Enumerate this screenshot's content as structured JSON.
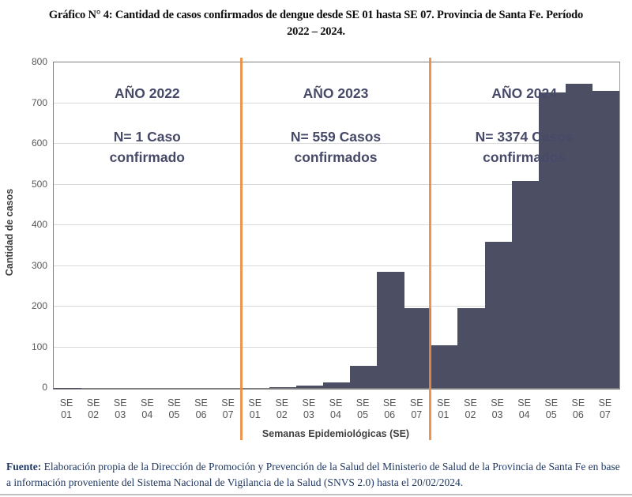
{
  "title": {
    "line1": "Gráfico N° 4: Cantidad de casos confirmados de dengue desde SE 01 hasta SE 07. Provincia de Santa Fe. Período",
    "line2": "2022 – 2024."
  },
  "chart_data": {
    "type": "bar",
    "title": "Gráfico N° 4: Cantidad de casos confirmados de dengue desde SE 01 hasta SE 07. Provincia de Santa Fe. Período 2022 – 2024.",
    "xlabel": "Semanas Epidemiológicas (SE)",
    "ylabel": "Cantidad de casos",
    "ylim": [
      0,
      800
    ],
    "ytick_step": 100,
    "grid": true,
    "legend": "none",
    "bar_color": "#4c4e64",
    "divider_color": "#eb8b3f",
    "categories": [
      "SE 01",
      "SE 02",
      "SE 03",
      "SE 04",
      "SE 05",
      "SE 06",
      "SE 07",
      "SE 01",
      "SE 02",
      "SE 03",
      "SE 04",
      "SE 05",
      "SE 06",
      "SE 07",
      "SE 01",
      "SE 02",
      "SE 03",
      "SE 04",
      "SE 05",
      "SE 06",
      "SE 07"
    ],
    "series": [
      {
        "name": "AÑO 2022",
        "total": 1,
        "values": [
          1,
          0,
          0,
          0,
          0,
          0,
          0
        ]
      },
      {
        "name": "AÑO 2023",
        "total": 559,
        "values": [
          0,
          2,
          6,
          14,
          55,
          286,
          196
        ]
      },
      {
        "name": "AÑO 2024",
        "total": 3374,
        "values": [
          105,
          196,
          360,
          509,
          726,
          748,
          730
        ]
      }
    ],
    "annotations": [
      {
        "year": "AÑO 2022",
        "line1": "N= 1 Caso",
        "line2": "confirmado"
      },
      {
        "year": "AÑO 2023",
        "line1": "N= 559 Casos",
        "line2": "confirmados"
      },
      {
        "year": "AÑO 2024",
        "line1": "N= 3374 Casos",
        "line2": "confirmados"
      }
    ]
  },
  "footer": {
    "label": "Fuente:",
    "text": "Elaboración propia de la Dirección de Promoción y Prevención de la Salud del Ministerio de Salud de la Provincia de Santa Fe en base a información proveniente del Sistema Nacional de Vigilancia de la Salud (SNVS 2.0) hasta el 20/02/2024."
  }
}
